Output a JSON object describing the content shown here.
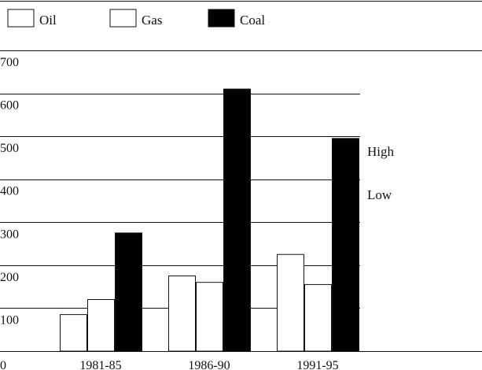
{
  "chart_data": {
    "type": "bar",
    "title": "",
    "xlabel": "",
    "ylabel": "",
    "categories": [
      "1981-85",
      "1986-90",
      "1991-95"
    ],
    "series": [
      {
        "name": "Oil",
        "values": [
          85,
          175,
          225
        ],
        "color": "#ffffff"
      },
      {
        "name": "Gas",
        "values": [
          120,
          160,
          155
        ],
        "color": "#ffffff"
      },
      {
        "name": "Coal",
        "values": [
          275,
          610,
          495
        ],
        "color": "#000000"
      }
    ],
    "ylim": [
      0,
      700
    ],
    "yticks": [
      "0",
      "100",
      "200",
      "300",
      "400",
      "500",
      "600",
      "700"
    ],
    "legend_position": "top",
    "grid": true,
    "annotations": [
      "High",
      "Low"
    ]
  }
}
